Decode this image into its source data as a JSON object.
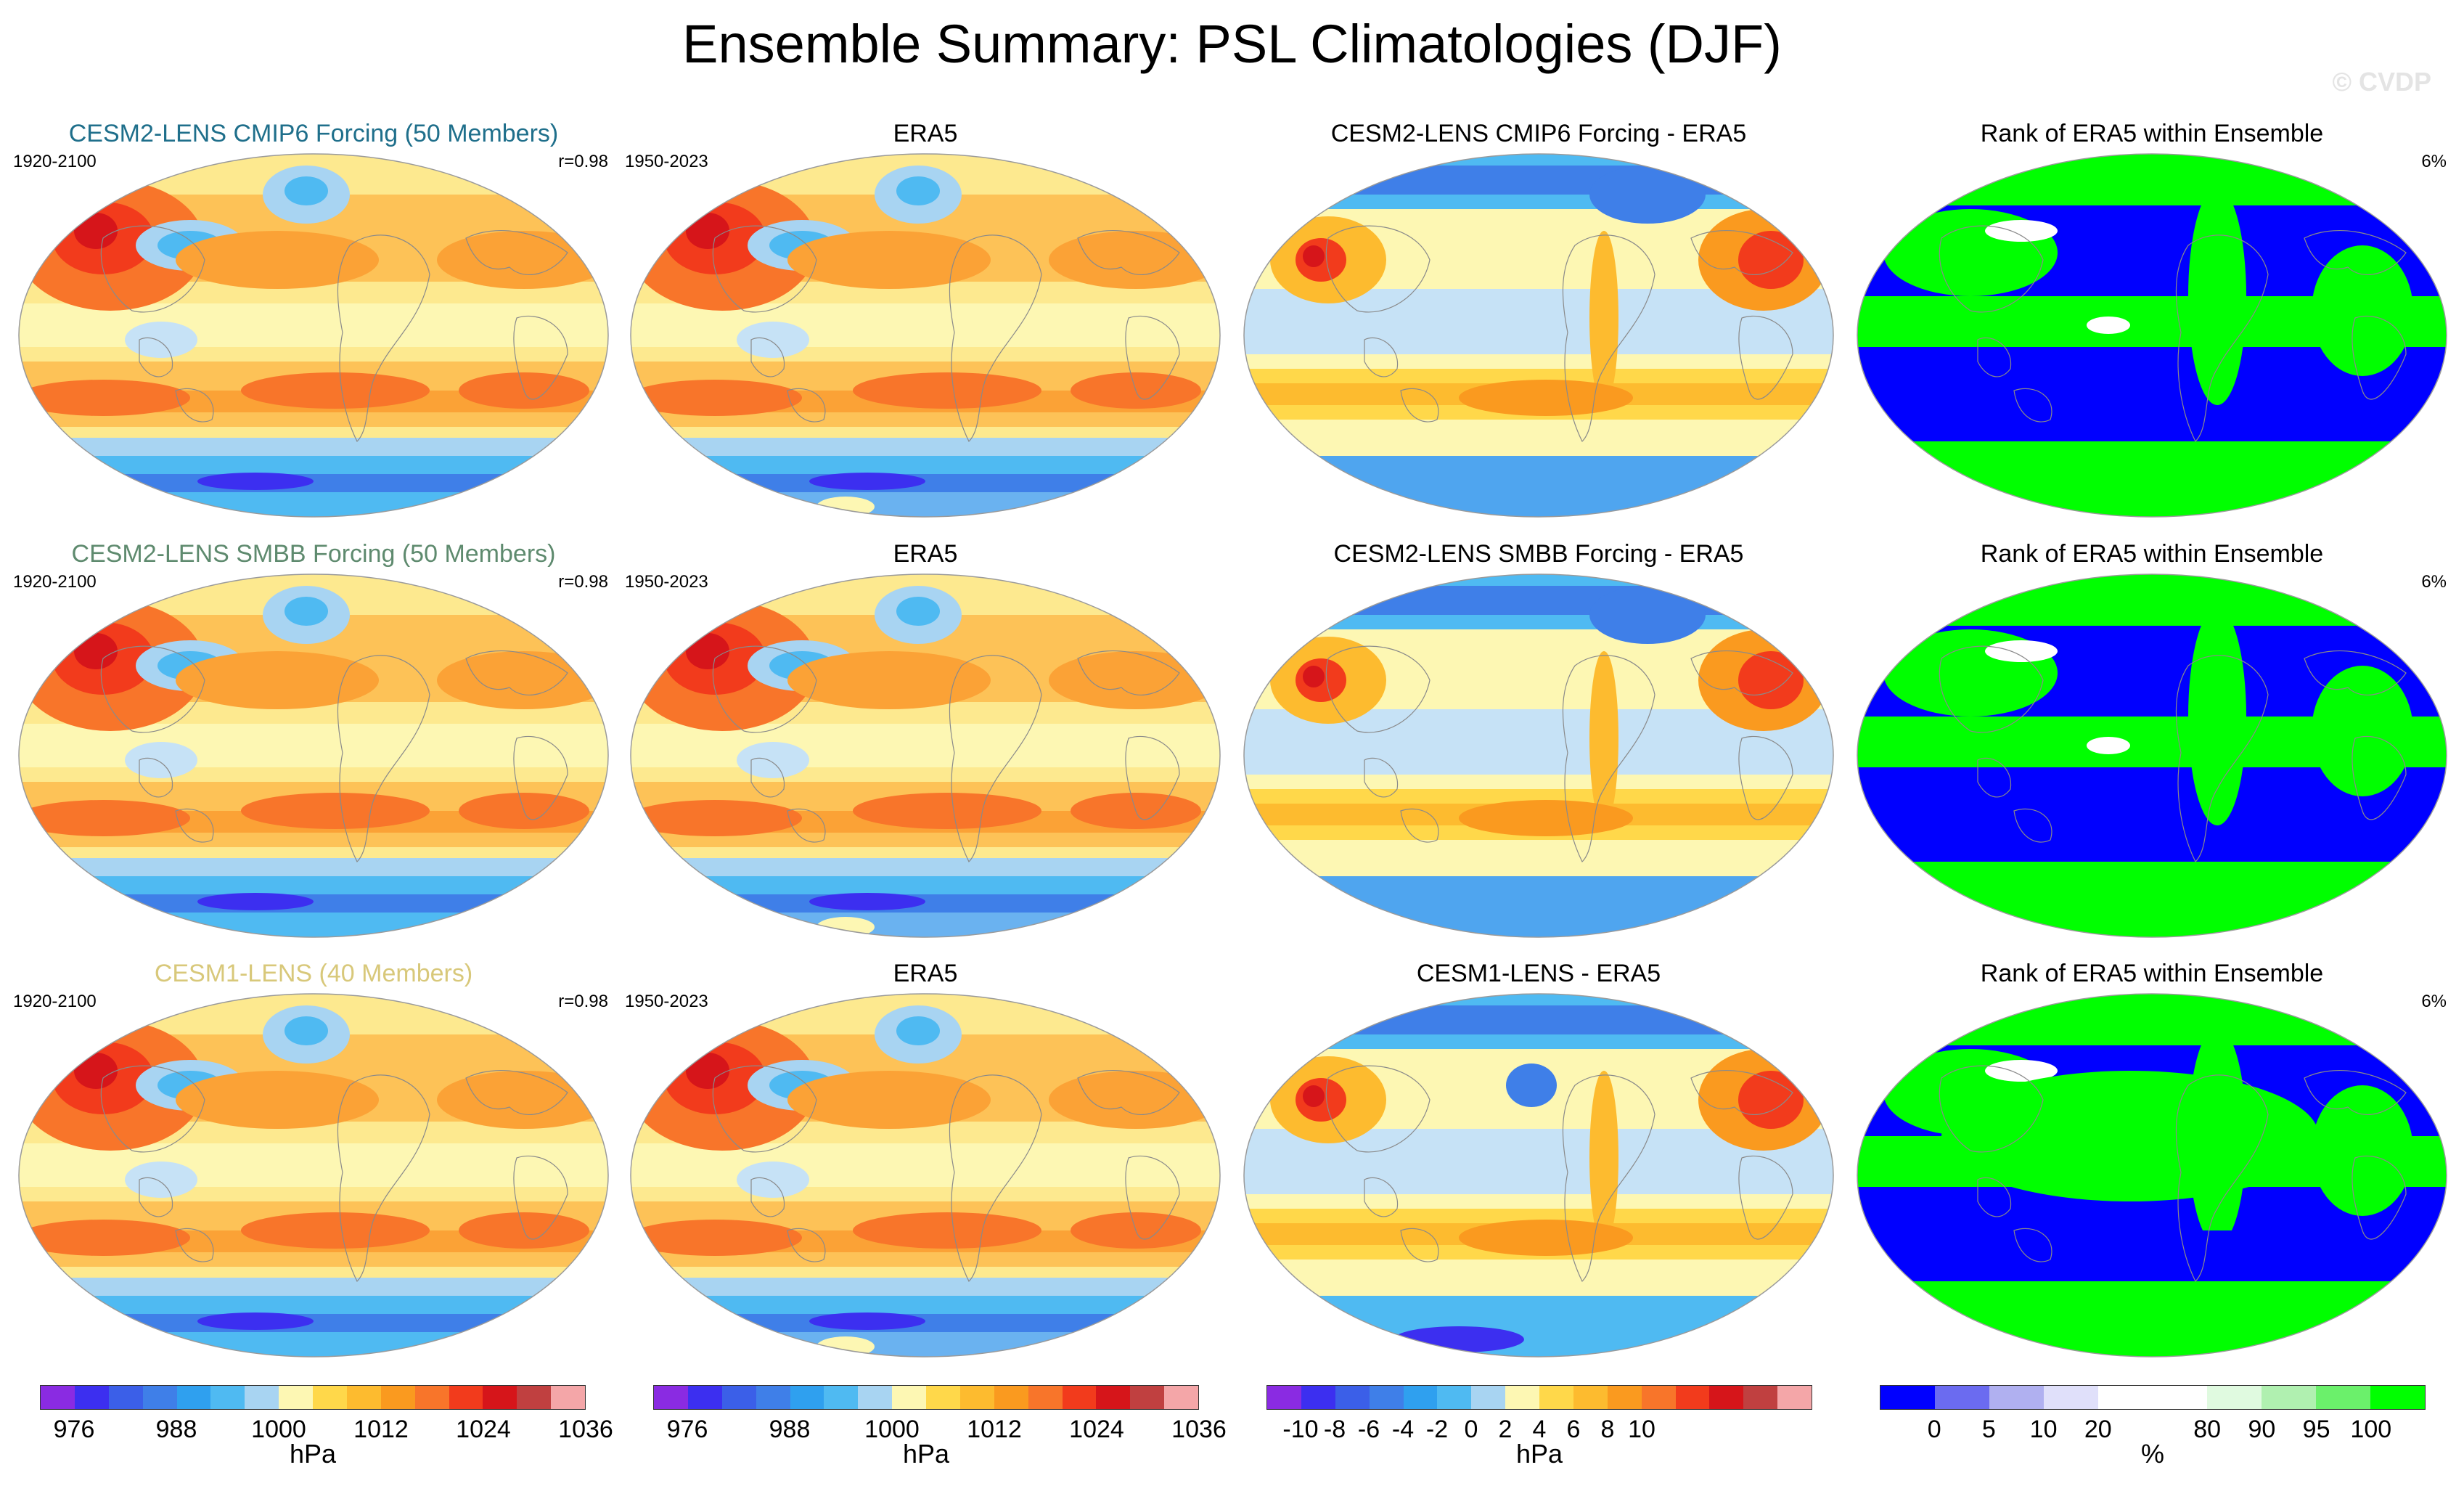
{
  "title": "Ensemble Summary: PSL Climatologies (DJF)",
  "watermark": "© CVDP",
  "rows": [
    {
      "model": {
        "title": "CESM2-LENS CMIP6 Forcing (50 Members)",
        "title_color": "#1f6f8b",
        "years": "1920-2100",
        "r": "r=0.98"
      },
      "obs": {
        "title": "ERA5",
        "years": "1950-2023"
      },
      "diff": {
        "title": "CESM2-LENS CMIP6 Forcing - ERA5"
      },
      "rank": {
        "title": "Rank of ERA5 within Ensemble",
        "pct": "6%"
      }
    },
    {
      "model": {
        "title": "CESM2-LENS SMBB Forcing (50 Members)",
        "title_color": "#5e8a6e",
        "years": "1920-2100",
        "r": "r=0.98"
      },
      "obs": {
        "title": "ERA5",
        "years": "1950-2023"
      },
      "diff": {
        "title": "CESM2-LENS SMBB Forcing - ERA5"
      },
      "rank": {
        "title": "Rank of ERA5 within Ensemble",
        "pct": "6%"
      }
    },
    {
      "model": {
        "title": "CESM1-LENS (40 Members)",
        "title_color": "#d8c87a",
        "years": "1920-2100",
        "r": "r=0.98"
      },
      "obs": {
        "title": "ERA5",
        "years": "1950-2023"
      },
      "diff": {
        "title": "CESM1-LENS - ERA5"
      },
      "rank": {
        "title": "Rank of ERA5 within Ensemble",
        "pct": "6%"
      }
    }
  ],
  "colorbars": [
    {
      "unit": "hPa",
      "labels": [
        "976",
        "988",
        "1000",
        "1012",
        "1024",
        "1036"
      ],
      "colors": [
        "#8a2be2",
        "#3c2ff0",
        "#3b5fe8",
        "#3f7fe8",
        "#2fa0ef",
        "#4fbaf2",
        "#a8d4f2",
        "#fdf7b3",
        "#ffd84a",
        "#fdbb2f",
        "#fa9a1f",
        "#f8752a",
        "#f23b1c",
        "#d6151a",
        "#c04040",
        "#f4a6a8"
      ],
      "label_positions": [
        1,
        4,
        7,
        10,
        13,
        16
      ]
    },
    {
      "unit": "hPa",
      "labels": [
        "976",
        "988",
        "1000",
        "1012",
        "1024",
        "1036"
      ],
      "colors": [
        "#8a2be2",
        "#3c2ff0",
        "#3b5fe8",
        "#3f7fe8",
        "#2fa0ef",
        "#4fbaf2",
        "#a8d4f2",
        "#fdf7b3",
        "#ffd84a",
        "#fdbb2f",
        "#fa9a1f",
        "#f8752a",
        "#f23b1c",
        "#d6151a",
        "#c04040",
        "#f4a6a8"
      ],
      "label_positions": [
        1,
        4,
        7,
        10,
        13,
        16
      ]
    },
    {
      "unit": "hPa",
      "labels": [
        "-10",
        "-8",
        "-6",
        "-4",
        "-2",
        "0",
        "2",
        "4",
        "6",
        "8",
        "10"
      ],
      "colors": [
        "#8a2be2",
        "#3c2ff0",
        "#3b5fe8",
        "#3f7fe8",
        "#2fa0ef",
        "#4fbaf2",
        "#a8d4f2",
        "#fdf7b3",
        "#ffd84a",
        "#fdbb2f",
        "#fa9a1f",
        "#f8752a",
        "#f23b1c",
        "#d6151a",
        "#c04040",
        "#f4a6a8"
      ],
      "label_positions": [
        1,
        2,
        3,
        4,
        5,
        6,
        7,
        8,
        9,
        10,
        11
      ]
    },
    {
      "unit": "%",
      "labels": [
        "0",
        "5",
        "10",
        "20",
        "80",
        "90",
        "95",
        "100"
      ],
      "colors": [
        "#0000ff",
        "#6b6bf0",
        "#b0b0f0",
        "#e0e0fa",
        "#ffffff",
        "#ffffff",
        "#e0fae0",
        "#b0f0b0",
        "#6bf06b",
        "#00ff00"
      ],
      "label_positions": [
        1,
        2,
        3,
        4,
        6,
        7,
        8,
        9
      ]
    }
  ]
}
